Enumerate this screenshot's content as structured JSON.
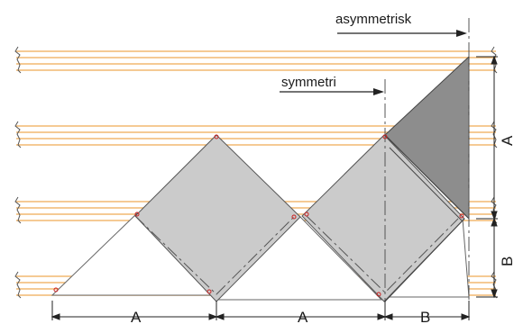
{
  "labels": {
    "asymmetric": "asymmetrisk",
    "symmetric": "symmetri",
    "dim_a_1": "A",
    "dim_a_2": "A",
    "dim_b_bottom": "B",
    "dim_a_side": "A",
    "dim_b_side": "B"
  },
  "colors": {
    "board_line": "#f2b870",
    "tile_fill": "#cbcbcb",
    "dark_fill": "#8d8d8d",
    "outline": "#555555",
    "corner_mark": "#cc2222"
  }
}
